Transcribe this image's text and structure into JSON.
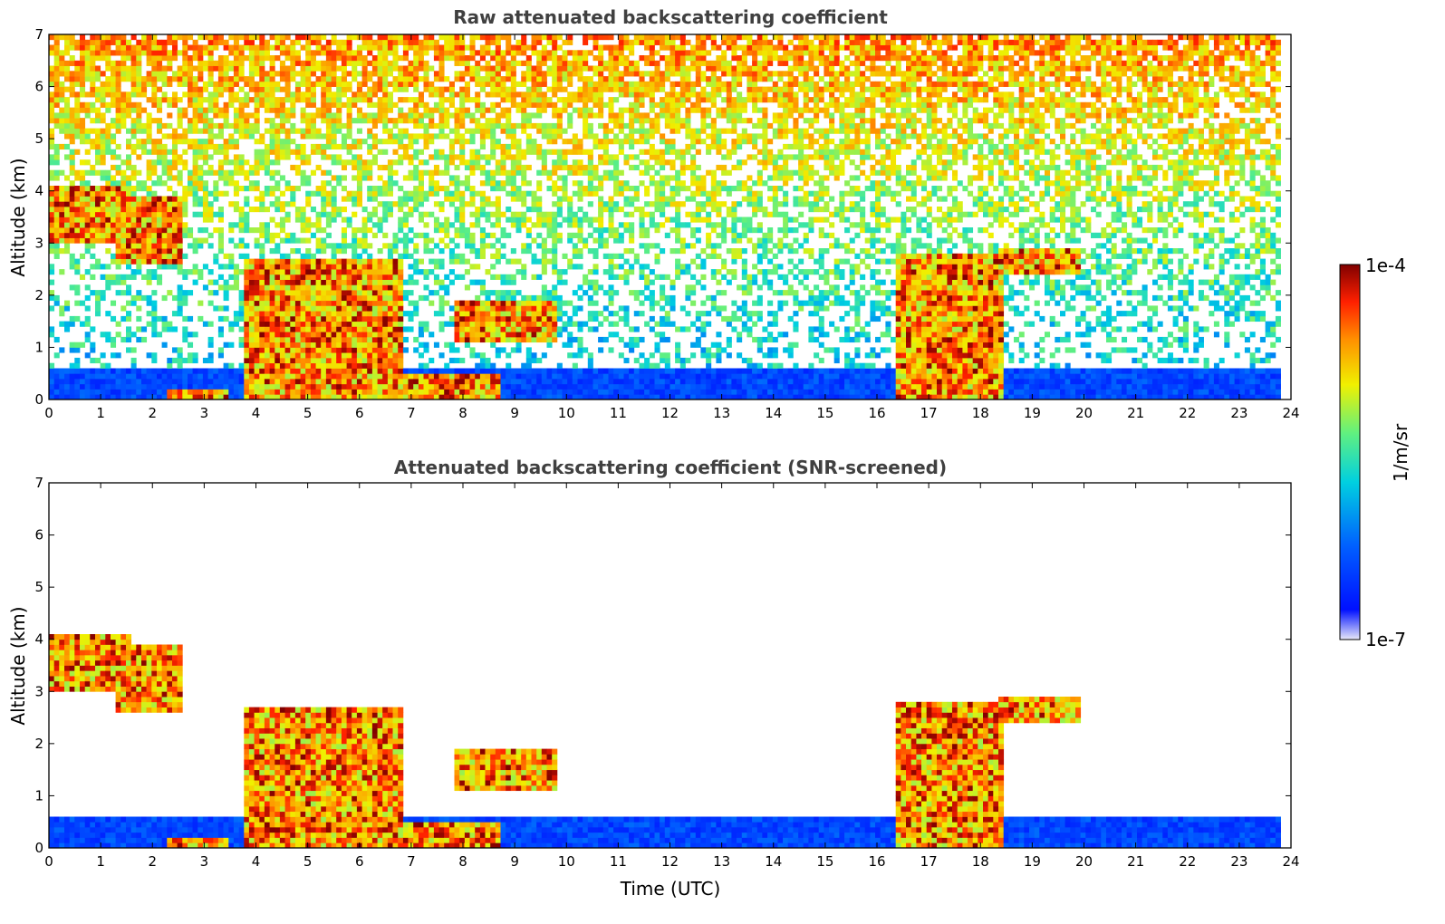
{
  "chart_data": [
    {
      "type": "heatmap",
      "title": "Raw attenuated backscattering coefficient",
      "xlabel": "",
      "ylabel": "Altitude (km)",
      "xlim": [
        0,
        24
      ],
      "ylim": [
        0,
        7
      ],
      "xticks": [
        "0",
        "1",
        "2",
        "3",
        "4",
        "5",
        "6",
        "7",
        "8",
        "9",
        "10",
        "11",
        "12",
        "13",
        "14",
        "15",
        "16",
        "17",
        "18",
        "19",
        "20",
        "21",
        "22",
        "23",
        "24"
      ],
      "yticks": [
        "0",
        "1",
        "2",
        "3",
        "4",
        "5",
        "6",
        "7"
      ],
      "grid": false,
      "data_end_hour": 23.8,
      "features": [
        {
          "feature": "boundary-layer aerosol",
          "x": [
            0,
            23.8
          ],
          "y_top": 0.6
        },
        {
          "feature": "cloud layer",
          "x": [
            0.0,
            1.6
          ],
          "y": [
            3.0,
            4.1
          ]
        },
        {
          "feature": "descending cloud",
          "x": [
            1.3,
            2.6
          ],
          "y": [
            2.6,
            3.9
          ]
        },
        {
          "feature": "low cloud",
          "x": [
            2.3,
            3.5
          ],
          "y": [
            0.0,
            0.2
          ]
        },
        {
          "feature": "cloud layer",
          "x": [
            3.8,
            6.8
          ],
          "y": [
            2.1,
            2.7
          ]
        },
        {
          "feature": "precipitation columns",
          "x": [
            3.8,
            6.8
          ],
          "y": [
            0.0,
            2.6
          ]
        },
        {
          "feature": "low cloud",
          "x": [
            6.8,
            8.7
          ],
          "y": [
            0.0,
            0.5
          ]
        },
        {
          "feature": "elevated layer",
          "x": [
            7.8,
            9.8
          ],
          "y": [
            1.1,
            1.9
          ]
        },
        {
          "feature": "cloud at 18 UTC",
          "x": [
            16.4,
            18.4
          ],
          "y": [
            0.0,
            2.8
          ]
        },
        {
          "feature": "cloud layer",
          "x": [
            18.3,
            19.9
          ],
          "y": [
            2.4,
            2.9
          ]
        }
      ]
    },
    {
      "type": "heatmap",
      "title": "Attenuated backscattering coefficient (SNR-screened)",
      "xlabel": "Time (UTC)",
      "ylabel": "Altitude (km)",
      "xlim": [
        0,
        24
      ],
      "ylim": [
        0,
        7
      ],
      "xticks": [
        "0",
        "1",
        "2",
        "3",
        "4",
        "5",
        "6",
        "7",
        "8",
        "9",
        "10",
        "11",
        "12",
        "13",
        "14",
        "15",
        "16",
        "17",
        "18",
        "19",
        "20",
        "21",
        "22",
        "23",
        "24"
      ],
      "yticks": [
        "0",
        "1",
        "2",
        "3",
        "4",
        "5",
        "6",
        "7"
      ],
      "grid": false,
      "data_end_hour": 23.8
    }
  ],
  "colorbar": {
    "label": "1/m/sr",
    "max_label": "1e-4",
    "min_label": "1e-7",
    "scale": "log",
    "range": [
      1e-07,
      0.0001
    ],
    "colormap": [
      "#e8e8f8",
      "#0000ff",
      "#00bfff",
      "#00ffbf",
      "#ffff00",
      "#ff8000",
      "#ff0000",
      "#800000"
    ]
  }
}
